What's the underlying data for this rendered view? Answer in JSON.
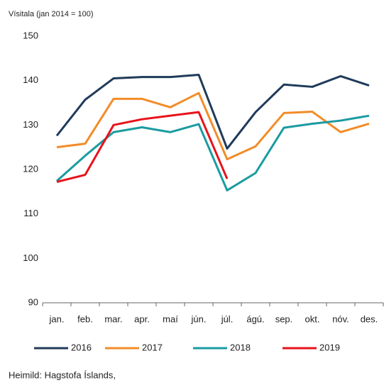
{
  "chart_data": {
    "type": "line",
    "title": "Vísitala (jan 2014 = 100)",
    "categories": [
      "jan.",
      "feb.",
      "mar.",
      "apr.",
      "maí",
      "jún.",
      "júl.",
      "ágú.",
      "sep.",
      "okt.",
      "nóv.",
      "des."
    ],
    "series": [
      {
        "name": "2016",
        "color": "#203a5a",
        "values": [
          127.6,
          135.7,
          140.5,
          140.8,
          140.8,
          141.3,
          124.7,
          132.9,
          139.1,
          138.6,
          141.0,
          138.9
        ]
      },
      {
        "name": "2017",
        "color": "#f28c28",
        "values": [
          125.0,
          125.8,
          135.9,
          135.9,
          134.0,
          137.2,
          122.3,
          125.2,
          132.7,
          133.0,
          128.4,
          130.3
        ]
      },
      {
        "name": "2018",
        "color": "#1a9ba0",
        "values": [
          117.4,
          123.1,
          128.4,
          129.5,
          128.4,
          130.2,
          115.3,
          119.2,
          129.4,
          130.3,
          131.0,
          132.1
        ]
      },
      {
        "name": "2019",
        "color": "#e8121b",
        "values": [
          117.2,
          118.8,
          130.0,
          131.3,
          132.1,
          132.9,
          117.9,
          null,
          null,
          null,
          null,
          null
        ]
      }
    ],
    "ylim": [
      90,
      150
    ],
    "yticks": [
      90,
      100,
      110,
      120,
      130,
      140,
      150
    ],
    "grid": false,
    "legend": "bottom",
    "source": "Heimild: Hagstofa Íslands,"
  }
}
